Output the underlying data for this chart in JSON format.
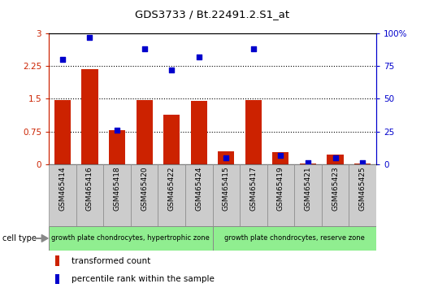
{
  "title": "GDS3733 / Bt.22491.2.S1_at",
  "samples": [
    "GSM465414",
    "GSM465416",
    "GSM465418",
    "GSM465420",
    "GSM465422",
    "GSM465424",
    "GSM465415",
    "GSM465417",
    "GSM465419",
    "GSM465421",
    "GSM465423",
    "GSM465425"
  ],
  "transformed_count": [
    1.47,
    2.18,
    0.77,
    1.47,
    1.13,
    1.44,
    0.29,
    1.47,
    0.28,
    0.02,
    0.22,
    0.02
  ],
  "percentile_rank": [
    80,
    97,
    26,
    88,
    72,
    82,
    5,
    88,
    7,
    1,
    5,
    1
  ],
  "bar_color": "#cc2200",
  "scatter_color": "#0000cc",
  "ylim_left": [
    0,
    3
  ],
  "ylim_right": [
    0,
    100
  ],
  "yticks_left": [
    0,
    0.75,
    1.5,
    2.25,
    3
  ],
  "yticks_right": [
    0,
    25,
    50,
    75,
    100
  ],
  "ytick_labels_left": [
    "0",
    "0.75",
    "1.5",
    "2.25",
    "3"
  ],
  "ytick_labels_right": [
    "0",
    "25",
    "50",
    "75",
    "100%"
  ],
  "group1_label": "growth plate chondrocytes, hypertrophic zone",
  "group2_label": "growth plate chondrocytes, reserve zone",
  "group1_count": 6,
  "group2_count": 6,
  "cell_type_label": "cell type",
  "legend1_label": "transformed count",
  "legend2_label": "percentile rank within the sample",
  "group_bg_color": "#90ee90",
  "tick_bg_color": "#cccccc",
  "bar_width": 0.6,
  "fig_width": 5.23,
  "fig_height": 3.54,
  "dpi": 100
}
